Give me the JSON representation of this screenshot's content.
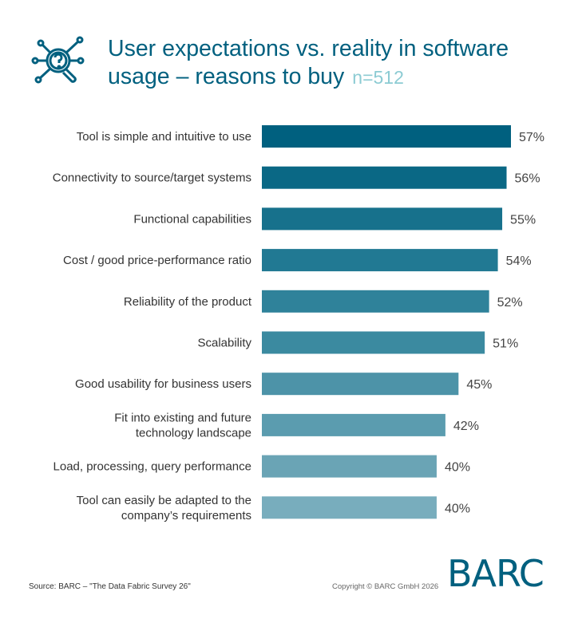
{
  "header": {
    "title": "User expectations vs. reality in software usage – reasons to buy",
    "sample": "n=512",
    "icon": "magnifier-question-network-icon"
  },
  "chart_data": {
    "type": "bar",
    "orientation": "horizontal",
    "xlim": [
      0,
      57
    ],
    "grid": false,
    "categories": [
      "Tool is simple and intuitive to use",
      "Connectivity to source/target systems",
      "Functional capabilities",
      "Cost / good price-performance ratio",
      "Reliability of the product",
      "Scalability",
      "Good usability for business users",
      "Fit into existing and future technology landscape",
      "Load, processing, query performance",
      "Tool can easily be adapted to the company's requirements"
    ],
    "category_lines": [
      [
        "Tool is simple and intuitive to use"
      ],
      [
        "Connectivity to source/target systems"
      ],
      [
        "Functional capabilities"
      ],
      [
        "Cost / good price-performance ratio"
      ],
      [
        "Reliability of the product"
      ],
      [
        "Scalability"
      ],
      [
        "Good usability for business users"
      ],
      [
        "Fit into existing and future",
        "technology landscape"
      ],
      [
        "Load, processing, query performance"
      ],
      [
        "Tool can easily be adapted to the",
        "company’s requirements"
      ]
    ],
    "values": [
      57,
      56,
      55,
      54,
      52,
      51,
      45,
      42,
      40,
      40
    ],
    "labels": [
      "57%",
      "56%",
      "55%",
      "54%",
      "52%",
      "51%",
      "45%",
      "42%",
      "40%",
      "40%"
    ],
    "colors": [
      "#00607f",
      "#0a6885",
      "#17718c",
      "#217993",
      "#2f829a",
      "#3b8aa0",
      "#4d93a8",
      "#5b9caf",
      "#6aa4b5",
      "#78adbd"
    ]
  },
  "footer": {
    "source": "Source: BARC – \"The Data Fabric Survey 26\"",
    "copyright": "Copyright © BARC GmbH 2026",
    "logo": "BARC"
  }
}
